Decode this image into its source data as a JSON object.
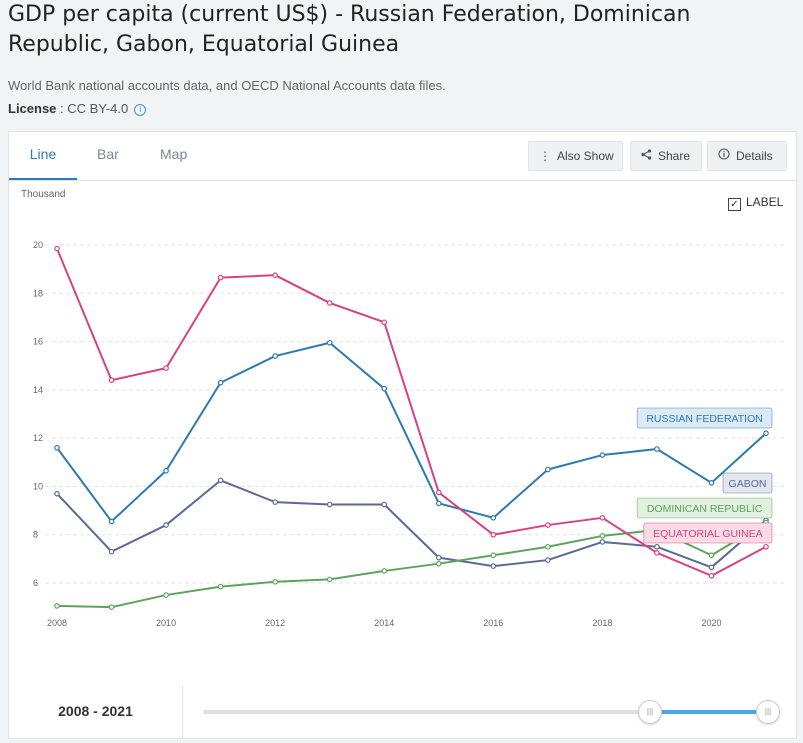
{
  "page": {
    "title": "GDP per capita (current US$) - Russian Federation, Dominican Republic, Gabon, Equatorial Guinea",
    "source": "World Bank national accounts data, and OECD National Accounts data files.",
    "license_label": "License",
    "license_value": " : CC BY-4.0",
    "info_icon": "ⓘ"
  },
  "tabs": [
    {
      "label": "Line",
      "active": true
    },
    {
      "label": "Bar",
      "active": false
    },
    {
      "label": "Map",
      "active": false
    }
  ],
  "toolbar": {
    "also_show": "Also Show",
    "share": "Share",
    "details": "Details",
    "also_show_icon": "vertical-dots-icon",
    "share_icon": "share-icon",
    "details_icon": "info-icon"
  },
  "label_toggle": {
    "label": "LABEL",
    "checked": true
  },
  "footer": {
    "range": "2008 - 2021"
  },
  "colors": {
    "russia": "#2b7bb0",
    "gabon": "#5a6a96",
    "dominican": "#5da45b",
    "guinea": "#d9417f",
    "grid": "#e3e3e3",
    "accent": "#2b7bc0"
  },
  "chart_data": {
    "type": "line",
    "unit_label": "Thousand",
    "x": [
      2008,
      2009,
      2010,
      2011,
      2012,
      2013,
      2014,
      2015,
      2016,
      2017,
      2018,
      2019,
      2020,
      2021
    ],
    "x_tick_labels": [
      "2008",
      "2010",
      "2012",
      "2014",
      "2016",
      "2018",
      "2020"
    ],
    "y_tick_labels": [
      "6",
      "8",
      "10",
      "12",
      "14",
      "16",
      "18",
      "20"
    ],
    "ylim": [
      4.5,
      21
    ],
    "grid": true,
    "series": [
      {
        "name": "RUSSIAN FEDERATION",
        "color_key": "russia",
        "label_bg": "#dceaf6",
        "values": [
          11.6,
          8.55,
          10.65,
          14.3,
          15.4,
          15.95,
          14.05,
          9.3,
          8.7,
          10.7,
          11.3,
          11.55,
          10.15,
          12.2
        ]
      },
      {
        "name": "GABON",
        "color_key": "gabon",
        "label_bg": "#e4e6ef",
        "values": [
          9.7,
          7.3,
          8.4,
          10.25,
          9.35,
          9.25,
          9.25,
          7.05,
          6.7,
          6.95,
          7.7,
          7.5,
          6.65,
          8.6
        ]
      },
      {
        "name": "DOMINICAN REPUBLIC",
        "color_key": "dominican",
        "label_bg": "#e2f0e0",
        "values": [
          5.05,
          5.0,
          5.5,
          5.85,
          6.05,
          6.15,
          6.5,
          6.8,
          7.15,
          7.5,
          7.95,
          8.2,
          7.15,
          8.5
        ]
      },
      {
        "name": "EQUATORIAL GUINEA",
        "color_key": "guinea",
        "label_bg": "#f9dbe6",
        "values": [
          19.85,
          14.4,
          14.9,
          18.65,
          18.75,
          17.6,
          16.8,
          9.75,
          8.0,
          8.4,
          8.7,
          7.25,
          6.3,
          7.5
        ]
      }
    ]
  }
}
